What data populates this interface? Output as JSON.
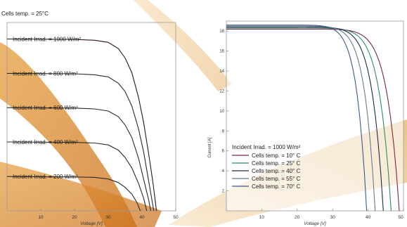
{
  "chart_data": [
    {
      "type": "line",
      "title": "Cells temp. = 25°C",
      "xlabel": "Voltage [V]",
      "ylabel": "",
      "xlim": [
        0,
        50
      ],
      "ylim": [
        0,
        9
      ],
      "x_ticks": [
        "10",
        "20",
        "30",
        "40",
        "50"
      ],
      "grid": false,
      "series": [
        {
          "name": "Incident Irrad. = 1000 W/m²",
          "isc": 8.21,
          "voc": 44.3,
          "shape": [
            [
              0,
              8.21
            ],
            [
              20,
              8.19
            ],
            [
              26,
              8.15
            ],
            [
              30,
              8.05
            ],
            [
              33,
              7.75
            ],
            [
              35,
              7.3
            ],
            [
              37,
              6.6
            ],
            [
              39,
              5.4
            ],
            [
              40.5,
              4.2
            ],
            [
              42,
              2.7
            ],
            [
              43.3,
              1.3
            ],
            [
              44.3,
              0
            ]
          ]
        },
        {
          "name": "Incident Irrad. = 800 W/m²",
          "isc": 6.57,
          "voc": 43.5,
          "shape": [
            [
              0,
              6.57
            ],
            [
              20,
              6.55
            ],
            [
              26,
              6.5
            ],
            [
              30,
              6.4
            ],
            [
              33,
              6.1
            ],
            [
              35,
              5.7
            ],
            [
              37,
              5.0
            ],
            [
              39,
              3.9
            ],
            [
              40.5,
              2.8
            ],
            [
              42,
              1.4
            ],
            [
              43.5,
              0
            ]
          ]
        },
        {
          "name": "Incident Irrad. = 600 W/m²",
          "isc": 4.93,
          "voc": 42.6,
          "shape": [
            [
              0,
              4.93
            ],
            [
              20,
              4.91
            ],
            [
              26,
              4.87
            ],
            [
              30,
              4.77
            ],
            [
              33,
              4.5
            ],
            [
              35,
              4.1
            ],
            [
              37,
              3.5
            ],
            [
              39,
              2.5
            ],
            [
              40.5,
              1.5
            ],
            [
              42,
              0.5
            ],
            [
              42.6,
              0
            ]
          ]
        },
        {
          "name": "Incident Irrad. = 400 W/m²",
          "isc": 3.29,
          "voc": 41.4,
          "shape": [
            [
              0,
              3.29
            ],
            [
              20,
              3.27
            ],
            [
              26,
              3.24
            ],
            [
              30,
              3.15
            ],
            [
              33,
              2.9
            ],
            [
              35,
              2.55
            ],
            [
              37,
              2.05
            ],
            [
              39,
              1.3
            ],
            [
              40.5,
              0.6
            ],
            [
              41.4,
              0
            ]
          ]
        },
        {
          "name": "Incident Irrad. = 200 W/m²",
          "isc": 1.64,
          "voc": 39.5,
          "shape": [
            [
              0,
              1.64
            ],
            [
              20,
              1.62
            ],
            [
              26,
              1.6
            ],
            [
              30,
              1.52
            ],
            [
              33,
              1.35
            ],
            [
              35,
              1.12
            ],
            [
              37,
              0.8
            ],
            [
              38.5,
              0.4
            ],
            [
              39.5,
              0
            ]
          ]
        }
      ],
      "colors": [
        "#2a1422",
        "#2a2a2a",
        "#2a2a2a",
        "#2a2a2a",
        "#2a2a2a"
      ]
    },
    {
      "type": "line",
      "title": "",
      "xlabel": "Voltage [V]",
      "ylabel": "Current [A]",
      "xlim": [
        0,
        50
      ],
      "ylim": [
        0,
        19
      ],
      "x_ticks": [
        "10",
        "20",
        "30",
        "40",
        "50"
      ],
      "y_ticks": [
        "2",
        "4",
        "6",
        "8",
        "10",
        "12",
        "14",
        "16",
        "18"
      ],
      "grid": false,
      "legend_title": "Incident Irrad. = 1000 W/m²",
      "legend": "bottom-left",
      "series": [
        {
          "name": "Cells temp. = 10° C",
          "color": "#7a2a3a",
          "isc": 18.2,
          "voc": 48.8
        },
        {
          "name": "Cells temp. = 25° C",
          "color": "#2e8a6a",
          "isc": 18.3,
          "voc": 46.5
        },
        {
          "name": "Cells temp. = 40° C",
          "color": "#1e2a4a",
          "isc": 18.4,
          "voc": 44.3
        },
        {
          "name": "Cells temp. = 55° C",
          "color": "#6a7a8a",
          "isc": 18.5,
          "voc": 42.0
        },
        {
          "name": "Cells temp. = 70° C",
          "color": "#3a5a8a",
          "isc": 18.6,
          "voc": 39.6
        }
      ]
    }
  ]
}
